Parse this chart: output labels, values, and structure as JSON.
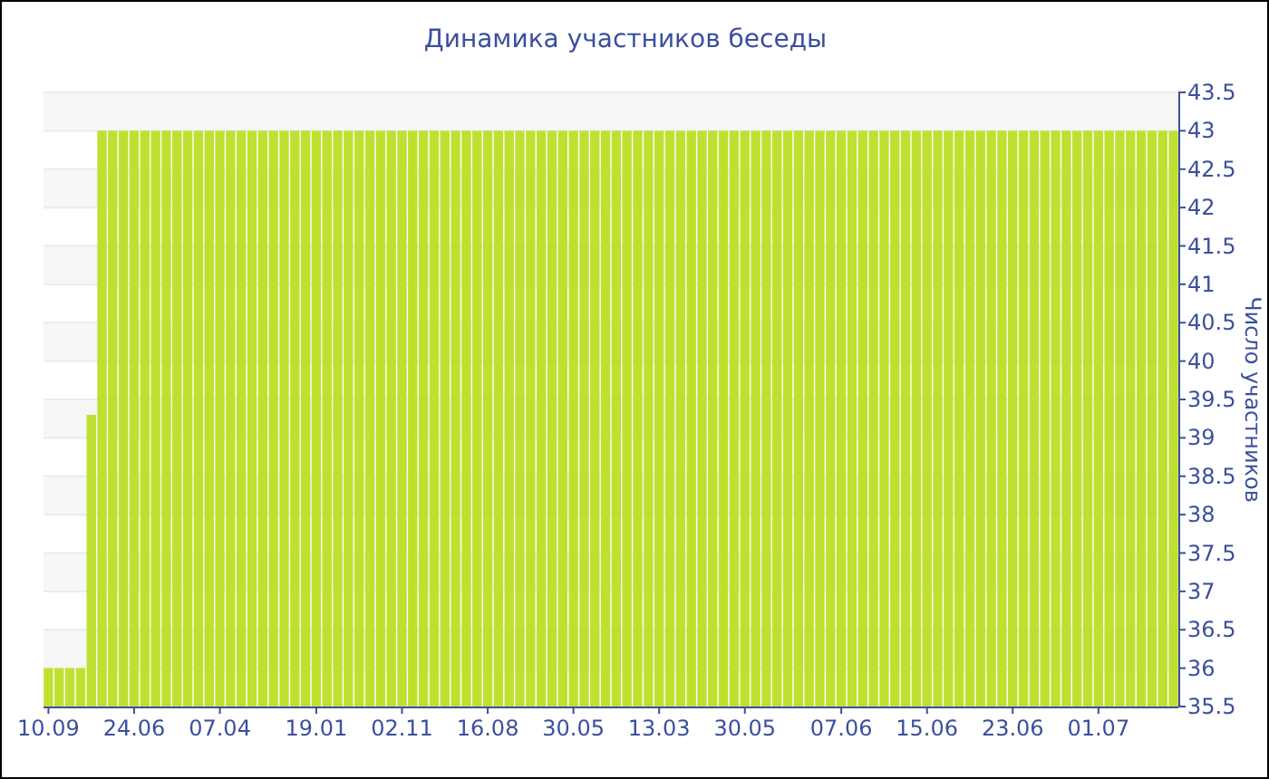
{
  "chart_data": {
    "type": "bar",
    "title": "Динамика участников беседы",
    "ylabel": "Число участников",
    "categories": [
      "10.09",
      null,
      null,
      null,
      null,
      null,
      null,
      null,
      "24.06",
      null,
      null,
      null,
      null,
      null,
      null,
      null,
      "07.04",
      null,
      null,
      null,
      null,
      null,
      null,
      null,
      null,
      "19.01",
      null,
      null,
      null,
      null,
      null,
      null,
      null,
      "02.11",
      null,
      null,
      null,
      null,
      null,
      null,
      null,
      "16.08",
      null,
      null,
      null,
      null,
      null,
      null,
      null,
      "30.05",
      null,
      null,
      null,
      null,
      null,
      null,
      null,
      "13.03",
      null,
      null,
      null,
      null,
      null,
      null,
      null,
      "30.05",
      null,
      null,
      null,
      null,
      null,
      null,
      null,
      null,
      "07.06",
      null,
      null,
      null,
      null,
      null,
      null,
      null,
      "15.06",
      null,
      null,
      null,
      null,
      null,
      null,
      null,
      "23.06",
      null,
      null,
      null,
      null,
      null,
      null,
      null,
      "01.07",
      null,
      null,
      null,
      null,
      null,
      null,
      null
    ],
    "values": [
      36,
      36,
      36,
      36,
      39.3,
      43,
      43,
      43,
      43,
      43,
      43,
      43,
      43,
      43,
      43,
      43,
      43,
      43,
      43,
      43,
      43,
      43,
      43,
      43,
      43,
      43,
      43,
      43,
      43,
      43,
      43,
      43,
      43,
      43,
      43,
      43,
      43,
      43,
      43,
      43,
      43,
      43,
      43,
      43,
      43,
      43,
      43,
      43,
      43,
      43,
      43,
      43,
      43,
      43,
      43,
      43,
      43,
      43,
      43,
      43,
      43,
      43,
      43,
      43,
      43,
      43,
      43,
      43,
      43,
      43,
      43,
      43,
      43,
      43,
      43,
      43,
      43,
      43,
      43,
      43,
      43,
      43,
      43,
      43,
      43,
      43,
      43,
      43,
      43,
      43,
      43,
      43,
      43,
      43,
      43,
      43,
      43,
      43,
      43,
      43,
      43,
      43,
      43,
      43,
      43,
      43
    ],
    "color": "#bfe030",
    "ylim": [
      35.5,
      43.5
    ],
    "yticks": [
      35.5,
      36,
      36.5,
      37,
      37.5,
      38,
      38.5,
      39,
      39.5,
      40,
      40.5,
      41,
      41.5,
      42,
      42.5,
      43,
      43.5
    ],
    "grid": "y"
  }
}
